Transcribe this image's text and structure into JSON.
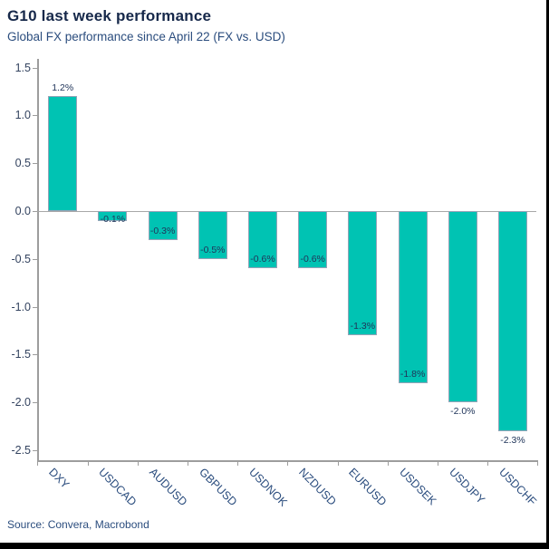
{
  "header": {
    "title": "G10 last week performance",
    "subtitle": "Global FX performance since April 22 (FX vs. USD)"
  },
  "footer": {
    "source": "Source: Convera, Macrobond"
  },
  "colors": {
    "bar_fill": "#00c3b3",
    "bar_border": "#94a3b7",
    "axis_line": "#9d9d9d",
    "title_text": "#16284a",
    "subtitle_text": "#2b4d7e",
    "data_label_text": "#20355a"
  },
  "chart_data": {
    "type": "bar",
    "title": "G10 last week performance",
    "subtitle": "Global FX performance since April 22 (FX vs. USD)",
    "categories": [
      "DXY",
      "USDCAD",
      "AUDUSD",
      "GBPUSD",
      "USDNOK",
      "NZDUSD",
      "EURUSD",
      "USDSEK",
      "USDJPY",
      "USDCHF"
    ],
    "values": [
      1.2,
      -0.1,
      -0.3,
      -0.5,
      -0.6,
      -0.6,
      -1.3,
      -1.8,
      -2.0,
      -2.3
    ],
    "data_labels": [
      "1.2%",
      "-0.1%",
      "-0.3%",
      "-0.5%",
      "-0.6%",
      "-0.6%",
      "-1.3%",
      "-1.8%",
      "-2.0%",
      "-2.3%"
    ],
    "label_placements": [
      "above",
      "inside",
      "inside",
      "inside",
      "inside",
      "inside",
      "inside",
      "inside",
      "below",
      "below"
    ],
    "unit": "%",
    "xlabel": "",
    "ylabel": "",
    "ylim": [
      -2.6,
      1.55
    ],
    "yticks": [
      1.5,
      1.0,
      0.5,
      0.0,
      -0.5,
      -1.0,
      -1.5,
      -2.0,
      -2.5
    ],
    "ytick_labels": [
      "1.5",
      "1.0",
      "0.5",
      "0.0",
      "-0.5",
      "-1.0",
      "-1.5",
      "-2.0",
      "-2.5"
    ],
    "grid": false,
    "legend": false,
    "zero_line": true
  }
}
